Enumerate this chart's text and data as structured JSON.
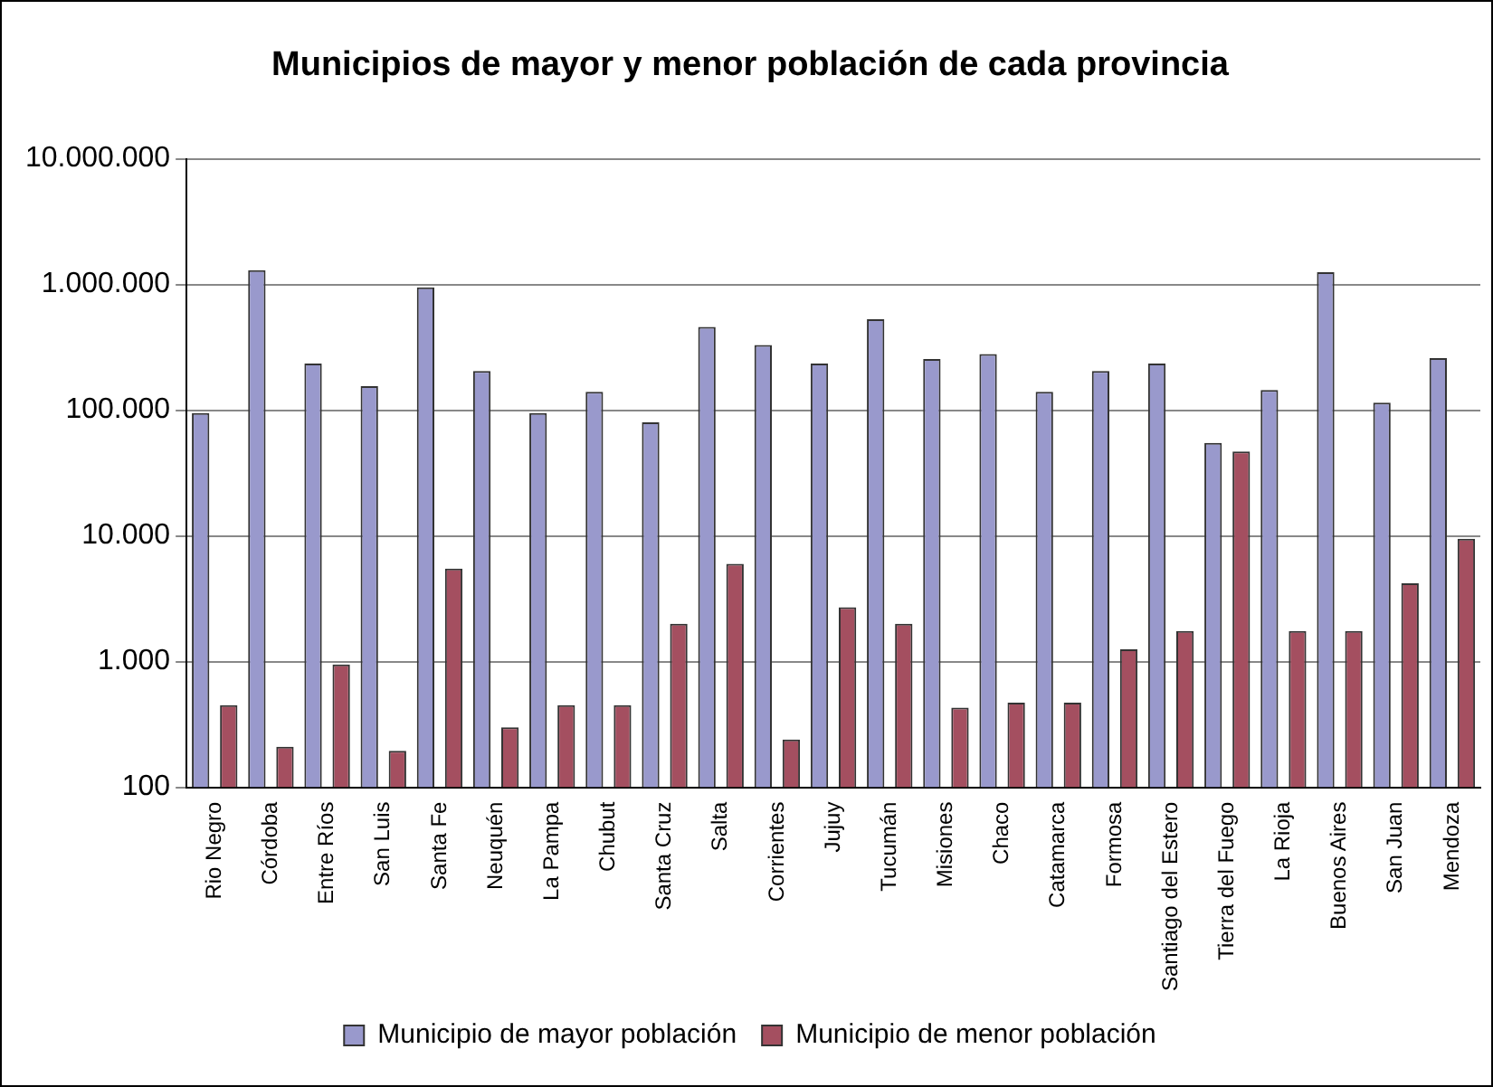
{
  "chart_data": {
    "type": "bar",
    "title": "Municipios de mayor y menor población de cada provincia",
    "categories": [
      "Rio Negro",
      "Córdoba",
      "Entre Ríos",
      "San Luis",
      "Santa Fe",
      "Neuquén",
      "La Pampa",
      "Chubut",
      "Santa Cruz",
      "Salta",
      "Corrientes",
      "Jujuy",
      "Tucumán",
      "Misiones",
      "Chaco",
      "Catamarca",
      "Formosa",
      "Santiago del Estero",
      "Tierra del Fuego",
      "La Rioja",
      "Buenos Aires",
      "San Juan",
      "Mendoza"
    ],
    "series": [
      {
        "name": "Municipio de mayor población",
        "color": "#9999cc",
        "values": [
          95000,
          1300000,
          235000,
          155000,
          950000,
          205000,
          95000,
          140000,
          80000,
          460000,
          330000,
          235000,
          530000,
          255000,
          280000,
          140000,
          205000,
          235000,
          55000,
          145000,
          1250000,
          115000,
          260000
        ]
      },
      {
        "name": "Municipio de menor población",
        "color": "#a44f60",
        "values": [
          450,
          210,
          950,
          195,
          5500,
          300,
          450,
          450,
          2000,
          6000,
          240,
          2700,
          2000,
          430,
          470,
          470,
          1250,
          1750,
          47000,
          1750,
          1750,
          4200,
          9500
        ]
      }
    ],
    "log": "y",
    "ylim": [
      100,
      10000000
    ],
    "yticks": [
      {
        "value": 100,
        "label": "100"
      },
      {
        "value": 1000,
        "label": "1.000"
      },
      {
        "value": 10000,
        "label": "10.000"
      },
      {
        "value": 100000,
        "label": "100.000"
      },
      {
        "value": 1000000,
        "label": "1.000.000"
      },
      {
        "value": 10000000,
        "label": "10.000.000"
      }
    ],
    "grid": "y",
    "legend": "bottom"
  }
}
